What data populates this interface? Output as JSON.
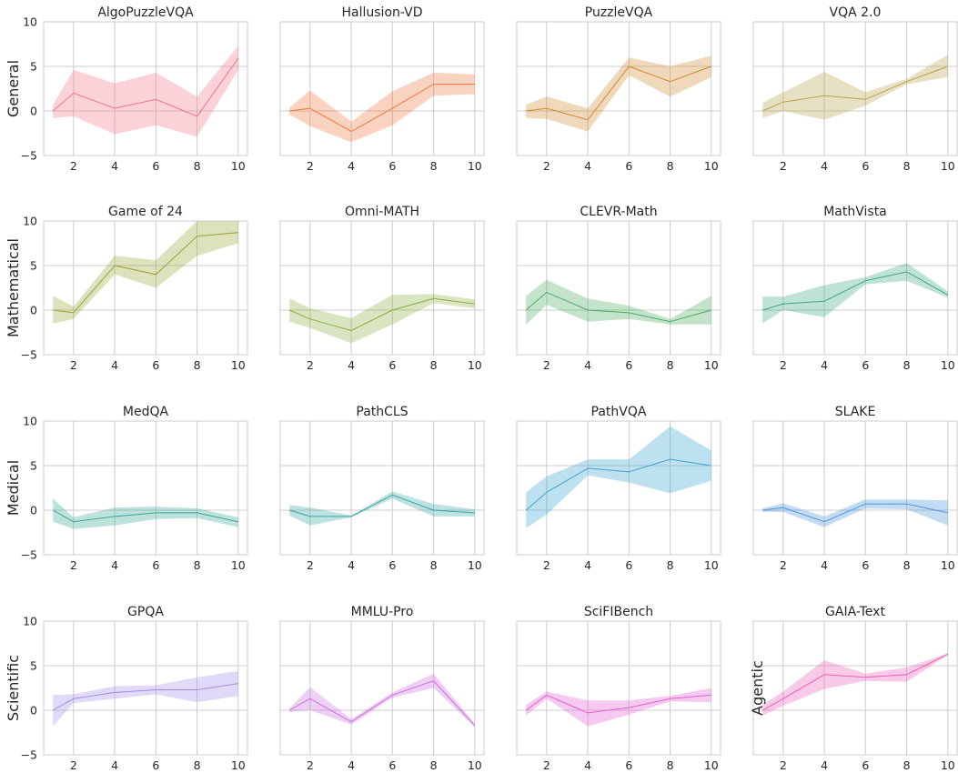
{
  "chart_data": [
    {
      "type": "line",
      "title": "AlgoPuzzleVQA",
      "row_label": "General",
      "color": "#f0758a",
      "x": [
        1,
        2,
        4,
        6,
        8,
        10
      ],
      "y": [
        0,
        2,
        0.3,
        1.3,
        -0.6,
        5.9
      ],
      "upper": [
        0.7,
        4.6,
        3.1,
        4.3,
        1.6,
        7.3
      ],
      "lower": [
        -0.8,
        -0.6,
        -2.6,
        -1.6,
        -2.9,
        4.6
      ],
      "ylim": [
        -5,
        10
      ],
      "xticks": [
        "2",
        "4",
        "6",
        "8",
        "10"
      ],
      "yticks": [
        "−5",
        "0",
        "5",
        "10"
      ]
    },
    {
      "type": "line",
      "title": "Hallusion-VD",
      "color": "#ee7a3e",
      "x": [
        1,
        2,
        4,
        6,
        8,
        10
      ],
      "y": [
        0,
        0.3,
        -2.3,
        0.3,
        3,
        3
      ],
      "upper": [
        0.4,
        2.3,
        -1.2,
        2.2,
        4.3,
        4.1
      ],
      "lower": [
        -0.4,
        -1.7,
        -3.5,
        -1.6,
        1.7,
        1.9
      ],
      "ylim": [
        -5,
        10
      ],
      "xticks": [
        "2",
        "4",
        "6",
        "8",
        "10"
      ]
    },
    {
      "type": "line",
      "title": "PuzzleVQA",
      "color": "#d08a30",
      "x": [
        1,
        2,
        4,
        6,
        8,
        10
      ],
      "y": [
        0,
        0.3,
        -1,
        5,
        3.3,
        5
      ],
      "upper": [
        0.7,
        1.6,
        0.3,
        6,
        5,
        6.2
      ],
      "lower": [
        -0.8,
        -0.9,
        -2.3,
        4,
        1.6,
        3.8
      ],
      "ylim": [
        -5,
        10
      ],
      "xticks": [
        "2",
        "4",
        "6",
        "8",
        "10"
      ]
    },
    {
      "type": "line",
      "title": "VQA 2.0",
      "color": "#b6a24a",
      "x": [
        1,
        2,
        4,
        6,
        8,
        10
      ],
      "y": [
        0,
        1,
        1.7,
        1.3,
        3.3,
        5
      ],
      "upper": [
        0.9,
        2.1,
        4.4,
        2.1,
        3.6,
        6.3
      ],
      "lower": [
        -0.8,
        0,
        -1,
        0.6,
        3,
        3.8
      ],
      "ylim": [
        -5,
        10
      ],
      "xticks": [
        "2",
        "4",
        "6",
        "8",
        "10"
      ]
    },
    {
      "type": "line",
      "title": "Game of 24",
      "row_label": "Mathematical",
      "color": "#99a335",
      "x": [
        1,
        2,
        4,
        6,
        8,
        10
      ],
      "y": [
        0,
        -0.3,
        5,
        4,
        8.3,
        8.7
      ],
      "upper": [
        1.6,
        0.4,
        6.1,
        5.6,
        10,
        10
      ],
      "lower": [
        -1.5,
        -1,
        4,
        2.5,
        6.1,
        7.5
      ],
      "ylim": [
        -5,
        10
      ],
      "xticks": [
        "2",
        "4",
        "6",
        "8",
        "10"
      ],
      "yticks": [
        "−5",
        "0",
        "5",
        "10"
      ]
    },
    {
      "type": "line",
      "title": "Omni-MATH",
      "color": "#8dae40",
      "x": [
        1,
        2,
        4,
        6,
        8,
        10
      ],
      "y": [
        0,
        -1,
        -2.3,
        0,
        1.3,
        0.7
      ],
      "upper": [
        1.3,
        0.2,
        -0.9,
        1.7,
        1.8,
        1.2
      ],
      "lower": [
        -1.3,
        -2,
        -3.7,
        -1.6,
        0.8,
        0.2
      ],
      "ylim": [
        -5,
        10
      ],
      "xticks": [
        "2",
        "4",
        "6",
        "8",
        "10"
      ]
    },
    {
      "type": "line",
      "title": "CLEVR-Math",
      "color": "#4aab62",
      "x": [
        1,
        2,
        4,
        6,
        8,
        10
      ],
      "y": [
        0,
        2,
        0,
        -0.3,
        -1.3,
        0
      ],
      "upper": [
        1.6,
        3.4,
        1.3,
        0.5,
        -1,
        1.6
      ],
      "lower": [
        -1.6,
        0.6,
        -1.3,
        -1,
        -1.6,
        -1.6
      ],
      "ylim": [
        -5,
        10
      ],
      "xticks": [
        "2",
        "4",
        "6",
        "8",
        "10"
      ]
    },
    {
      "type": "line",
      "title": "MathVista",
      "color": "#3aa883",
      "x": [
        1,
        2,
        4,
        6,
        8,
        10
      ],
      "y": [
        0,
        0.7,
        1,
        3.3,
        4.3,
        1.7
      ],
      "upper": [
        1.5,
        1.5,
        2.8,
        3.7,
        5.3,
        2.1
      ],
      "lower": [
        -1.5,
        0,
        -0.8,
        2.9,
        3.3,
        1.4
      ],
      "ylim": [
        -5,
        10
      ],
      "xticks": [
        "2",
        "4",
        "6",
        "8",
        "10"
      ]
    },
    {
      "type": "line",
      "title": "MedQA",
      "row_label": "Medical",
      "color": "#36a694",
      "x": [
        1,
        2,
        4,
        6,
        8,
        10
      ],
      "y": [
        0,
        -1.3,
        -0.7,
        -0.3,
        -0.3,
        -1.3
      ],
      "upper": [
        1.3,
        -0.8,
        0.3,
        0.4,
        0.2,
        -0.8
      ],
      "lower": [
        -1.3,
        -2.1,
        -1.7,
        -1,
        -0.9,
        -1.9
      ],
      "ylim": [
        -5,
        10
      ],
      "xticks": [
        "2",
        "4",
        "6",
        "8",
        "10"
      ],
      "yticks": [
        "−5",
        "0",
        "5",
        "10"
      ]
    },
    {
      "type": "line",
      "title": "PathCLS",
      "color": "#38a6a5",
      "x": [
        1,
        2,
        4,
        6,
        8,
        10
      ],
      "y": [
        0,
        -0.7,
        -0.7,
        1.7,
        0,
        -0.3
      ],
      "upper": [
        0.6,
        0.3,
        -0.6,
        2.1,
        0.7,
        0.1
      ],
      "lower": [
        -0.6,
        -1.7,
        -0.8,
        1.3,
        -0.7,
        -0.7
      ],
      "ylim": [
        -5,
        10
      ],
      "xticks": [
        "2",
        "4",
        "6",
        "8",
        "10"
      ]
    },
    {
      "type": "line",
      "title": "PathVQA",
      "color": "#3ba3d0",
      "x": [
        1,
        2,
        4,
        6,
        8,
        10
      ],
      "y": [
        0,
        2,
        4.7,
        4.3,
        5.7,
        5
      ],
      "upper": [
        2,
        3.8,
        5.7,
        5.7,
        9.4,
        6.7
      ],
      "lower": [
        -2,
        -0.5,
        3.9,
        3.1,
        1.9,
        3.3
      ],
      "ylim": [
        -5,
        10
      ],
      "xticks": [
        "2",
        "4",
        "6",
        "8",
        "10"
      ]
    },
    {
      "type": "line",
      "title": "SLAKE",
      "color": "#4a95de",
      "x": [
        1,
        2,
        4,
        6,
        8,
        10
      ],
      "y": [
        0,
        0.3,
        -1.3,
        0.7,
        0.7,
        -0.3
      ],
      "upper": [
        0.2,
        0.8,
        -0.7,
        1.2,
        1.2,
        1.1
      ],
      "lower": [
        -0.2,
        -0.2,
        -1.9,
        0.2,
        0.1,
        -1.7
      ],
      "ylim": [
        -5,
        10
      ],
      "xticks": [
        "2",
        "4",
        "6",
        "8",
        "10"
      ]
    },
    {
      "type": "line",
      "title": "GPQA",
      "row_label": "Scientific",
      "color": "#a28be8",
      "x": [
        1,
        2,
        4,
        6,
        8,
        10
      ],
      "y": [
        0,
        1.3,
        2,
        2.3,
        2.3,
        3
      ],
      "upper": [
        1.7,
        1.8,
        2.7,
        2.8,
        3.7,
        4.4
      ],
      "lower": [
        -1.8,
        0.8,
        1.3,
        1.8,
        0.9,
        1.6
      ],
      "ylim": [
        -5,
        10
      ],
      "xticks": [
        "2",
        "4",
        "6",
        "8",
        "10"
      ],
      "yticks": [
        "−5",
        "0",
        "5",
        "10"
      ]
    },
    {
      "type": "line",
      "title": "MMLU-Pro",
      "color": "#cc6ee0",
      "x": [
        1,
        2,
        4,
        6,
        8,
        10
      ],
      "y": [
        0,
        1.3,
        -1.3,
        1.7,
        3.3,
        -1.7
      ],
      "upper": [
        0.2,
        2.6,
        -1,
        2,
        4.1,
        -1.5
      ],
      "lower": [
        -0.2,
        0,
        -1.6,
        1.4,
        2.5,
        -1.9
      ],
      "ylim": [
        -5,
        10
      ],
      "xticks": [
        "2",
        "4",
        "6",
        "8",
        "10"
      ]
    },
    {
      "type": "line",
      "title": "SciFIBench",
      "color": "#e45ed2",
      "x": [
        1,
        2,
        4,
        6,
        8,
        10
      ],
      "y": [
        0,
        1.7,
        -0.3,
        0.3,
        1.3,
        1.7
      ],
      "upper": [
        0.6,
        2.1,
        1.1,
        1.1,
        1.6,
        2.5
      ],
      "lower": [
        -0.6,
        1.3,
        -1.8,
        -0.5,
        1,
        0.9
      ],
      "ylim": [
        -5,
        10
      ],
      "xticks": [
        "2",
        "4",
        "6",
        "8",
        "10"
      ]
    },
    {
      "type": "line",
      "title": "GAIA-Text",
      "row_label": "Agentic",
      "color": "#ee5bb8",
      "x": [
        1,
        2,
        4,
        6,
        8,
        10
      ],
      "y": [
        0,
        1.3,
        4,
        3.7,
        4,
        6.3
      ],
      "upper": [
        0.6,
        2.1,
        5.6,
        4.1,
        4.8,
        6.4
      ],
      "lower": [
        -0.6,
        0.5,
        2.4,
        3.3,
        3.2,
        6.2
      ],
      "ylim": [
        -5,
        10
      ],
      "xticks": [
        "2",
        "4",
        "6",
        "8",
        "10"
      ]
    }
  ]
}
